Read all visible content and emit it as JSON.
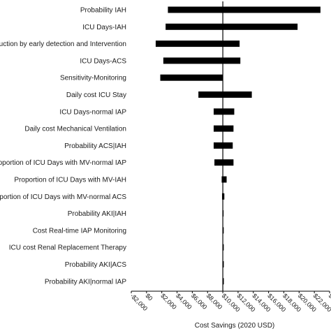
{
  "chart_data": {
    "type": "bar",
    "orientation": "horizontal",
    "layout": "tornado",
    "base_value": 10000,
    "xlabel": "Cost Savings (2020 USD)",
    "ylabel": "",
    "xlim": [
      -2000,
      24000
    ],
    "tick_values": [
      -2000,
      0,
      2000,
      4000,
      6000,
      8000,
      10000,
      12000,
      14000,
      16000,
      18000,
      20000,
      22000,
      24000
    ],
    "tick_labels": [
      "-$2,000",
      "$0",
      "$2,000",
      "$4,000",
      "$6,000",
      "$8,000",
      "$10,000",
      "$12,000",
      "$14,000",
      "$16,000",
      "$18,000",
      "$20,000",
      "$22,000",
      "$24,000"
    ],
    "grid": false,
    "legend": "none",
    "bar_color": "#000000",
    "categories": [
      "Probability IAH",
      "ICU Days-IAH",
      "Cost Reduction by early detection and Intervention",
      "ICU Days-ACS",
      "Sensitivity-Monitoring",
      "Daily cost ICU Stay",
      "ICU Days-normal IAP",
      "Daily cost Mechanical Ventilation",
      "Probability ACS|IAH",
      "Proportion of ICU Days with MV-normal IAP",
      "Proportion of ICU Days with MV-IAH",
      "Proportion of ICU Days with MV-normal ACS",
      "Probability AKI|IAH",
      "Cost Real-time IAP Monitoring",
      "ICU cost Renal Replacement Therapy",
      "Probability AKI|ACS",
      "Probability AKI|normal IAP"
    ],
    "low": [
      2800,
      2500,
      1200,
      2200,
      1800,
      6800,
      8800,
      8800,
      8800,
      8900,
      9850,
      9900,
      9960,
      9980,
      9985,
      9990,
      9995
    ],
    "high": [
      22800,
      19800,
      12200,
      12300,
      10000,
      13800,
      11500,
      11400,
      11300,
      11400,
      10500,
      10200,
      10050,
      10030,
      10020,
      10010,
      10005
    ]
  }
}
